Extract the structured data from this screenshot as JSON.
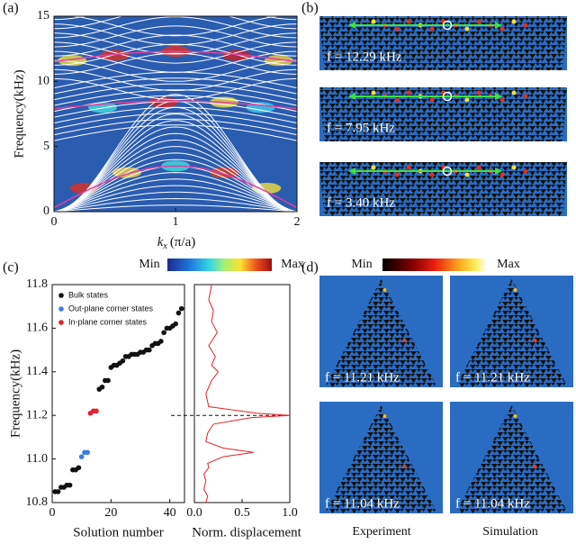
{
  "labels": [
    "(a)",
    "(b)",
    "(c)",
    "(d)"
  ],
  "colorbars": [
    {
      "min": "Min",
      "max": "Max"
    },
    {
      "min": "Min",
      "max": "Max"
    }
  ],
  "panel_b": [
    "f = 12.29 kHz",
    "f = 7.95 kHz",
    "f = 3.40 kHz"
  ],
  "panel_d": {
    "images": [
      "f = 11.21 kHz",
      "f = 11.21 kHz",
      "f = 11.04 kHz",
      "f = 11.04 kHz"
    ],
    "columns": [
      "Experiment",
      "Simulation"
    ]
  },
  "chart_data": [
    {
      "type": "band",
      "ylabel": "Frequency(kHz)",
      "xlabel": {
        "var": "k",
        "sub": "x",
        "unit": "(π/a)"
      },
      "xlim": [
        0,
        2
      ],
      "xticks": [
        0,
        1,
        2
      ],
      "ylim": [
        0,
        15
      ],
      "yticks": [
        0,
        5,
        10,
        15
      ]
    },
    {
      "type": "scatter",
      "ylabel": "Frequency(kHz)",
      "xlabel": "Solution number",
      "xlim": [
        0,
        45
      ],
      "xticks": [
        0,
        20,
        40
      ],
      "ylim": [
        10.8,
        11.8
      ],
      "yticks": [
        10.8,
        {
          "value": 11,
          "label": "11.0"
        },
        11.2,
        11.4,
        11.6,
        11.8
      ],
      "legend": "upper left",
      "series": [
        {
          "name": "Bulk states",
          "color": "#111111",
          "x": [
            1,
            2,
            3,
            4,
            5,
            6,
            7,
            8,
            9,
            16,
            17,
            18,
            19,
            20,
            21,
            22,
            23,
            24,
            25,
            26,
            27,
            28,
            29,
            30,
            31,
            32,
            33,
            34,
            35,
            36,
            37,
            38,
            39,
            40,
            41,
            42,
            43,
            44
          ],
          "values": [
            10.85,
            10.85,
            10.87,
            10.87,
            10.88,
            10.88,
            10.95,
            10.95,
            10.96,
            11.32,
            11.33,
            11.36,
            11.36,
            11.42,
            11.43,
            11.43,
            11.44,
            11.45,
            11.47,
            11.47,
            11.48,
            11.48,
            11.48,
            11.49,
            11.49,
            11.5,
            11.5,
            11.52,
            11.53,
            11.53,
            11.54,
            11.58,
            11.6,
            11.6,
            11.61,
            11.62,
            11.67,
            11.69
          ]
        },
        {
          "name": "Out-plane corner states",
          "color": "#3a7ee8",
          "x": [
            10,
            11,
            12
          ],
          "values": [
            11.01,
            11.03,
            11.03
          ]
        },
        {
          "name": "In-plane corner states",
          "color": "#e8202a",
          "x": [
            13,
            14,
            15
          ],
          "values": [
            11.21,
            11.22,
            11.22
          ]
        }
      ]
    },
    {
      "type": "line",
      "xlabel": "Norm. displacement",
      "xlim": [
        0,
        1
      ],
      "xticks": [
        {
          "value": 0,
          "label": "0.0"
        },
        0.5,
        {
          "value": 1,
          "label": "1.0"
        }
      ],
      "ylim": [
        10.8,
        11.8
      ],
      "reference_line": 11.2,
      "color": "#e8202a",
      "frequency": [
        10.8,
        10.83,
        10.86,
        10.9,
        10.93,
        10.96,
        10.98,
        11.01,
        11.03,
        11.05,
        11.08,
        11.12,
        11.16,
        11.19,
        11.2,
        11.21,
        11.24,
        11.3,
        11.36,
        11.4,
        11.43,
        11.47,
        11.52,
        11.58,
        11.63,
        11.68,
        11.73,
        11.8
      ],
      "values": [
        0.12,
        0.14,
        0.1,
        0.12,
        0.1,
        0.15,
        0.14,
        0.3,
        0.62,
        0.3,
        0.12,
        0.14,
        0.2,
        0.6,
        1.0,
        0.65,
        0.15,
        0.12,
        0.18,
        0.25,
        0.18,
        0.22,
        0.15,
        0.24,
        0.18,
        0.2,
        0.15,
        0.18
      ]
    }
  ]
}
